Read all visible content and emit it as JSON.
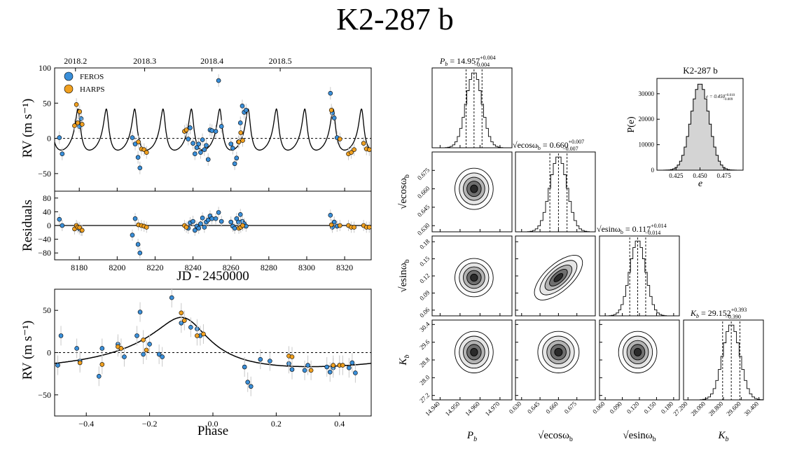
{
  "title": "K2-287 b",
  "colors": {
    "feros": "#3a8fd9",
    "harps": "#f0a020",
    "model": "#000000",
    "hist_fill": "#d4d4d4",
    "err": "#c8c8c8"
  },
  "chart_data": [
    {
      "id": "rv_time",
      "type": "scatter",
      "xlabel": "",
      "ylabel": "RV (m s⁻¹)",
      "xlim": [
        8167,
        8334
      ],
      "ylim": [
        -75,
        100
      ],
      "yticks": [
        -50,
        0,
        50,
        100
      ],
      "top_ticks": [
        8178,
        8214.5,
        8250,
        8286
      ],
      "top_tick_labels": [
        "2018.2",
        "2018.3",
        "2018.4",
        "2018.5"
      ],
      "legend": {
        "position": "top-left",
        "entries": [
          "FEROS",
          "HARPS"
        ]
      },
      "model": {
        "period": 14.957,
        "e": 0.45,
        "K": 29.152,
        "peak_time": 8179.3
      },
      "series": [
        {
          "name": "FEROS",
          "x": [
            8169.5,
            8171,
            8180,
            8181,
            8208,
            8209.5,
            8211,
            8212,
            8237.5,
            8238.5,
            8240,
            8241,
            8242,
            8243,
            8244,
            8245,
            8246,
            8247,
            8248,
            8249,
            8250,
            8252,
            8253.5,
            8255,
            8260,
            8261,
            8262,
            8263,
            8264,
            8265,
            8266,
            8267,
            8268,
            8312.5,
            8313.5,
            8314.5,
            8316
          ],
          "y": [
            1,
            -22,
            17,
            28,
            1,
            -8,
            -27,
            -42,
            -1,
            15,
            -7,
            -22,
            -13,
            -8,
            -20,
            -2,
            -16,
            -10,
            -30,
            12,
            11,
            10,
            82,
            17,
            -8,
            -14,
            -36,
            -28,
            -5,
            22,
            46,
            37,
            40,
            64,
            36,
            29,
            1
          ]
        },
        {
          "name": "HARPS",
          "x": [
            8177.5,
            8178.5,
            8179.2,
            8180.2,
            8181.5,
            8211.2,
            8212.8,
            8214.2,
            8215.5,
            8235.5,
            8236.5,
            8264.2,
            8265.2,
            8266.2,
            8313,
            8317.5,
            8322,
            8323.5,
            8325,
            8330,
            8331.5,
            8333
          ],
          "y": [
            18,
            48,
            22,
            38,
            20,
            -5,
            -15,
            -16,
            -20,
            10,
            12,
            -5,
            8,
            -3,
            40,
            -1,
            -22,
            -20,
            -16,
            -7,
            -15,
            -16
          ]
        }
      ]
    },
    {
      "id": "residuals",
      "type": "scatter",
      "xlabel": "JD - 2450000",
      "ylabel": "Residuals",
      "xlim": [
        8167,
        8334
      ],
      "ylim": [
        -100,
        100
      ],
      "xticks": [
        8180,
        8200,
        8220,
        8240,
        8260,
        8280,
        8300,
        8320
      ],
      "yticks": [
        -80,
        -40,
        0,
        40,
        80
      ],
      "series": [
        {
          "name": "FEROS",
          "x": [
            8169.5,
            8171,
            8180,
            8181,
            8208,
            8209.5,
            8211,
            8212,
            8237.5,
            8238.5,
            8240,
            8241,
            8242,
            8243,
            8244,
            8245,
            8246,
            8247,
            8248,
            8249,
            8250,
            8252,
            8253.5,
            8255,
            8260,
            8261,
            8262,
            8263,
            8264,
            8265,
            8266,
            8267,
            8268,
            8312.5,
            8313.5,
            8314.5,
            8316
          ],
          "y": [
            18,
            0,
            -10,
            -14,
            -28,
            20,
            -55,
            -80,
            -8,
            8,
            12,
            -14,
            -2,
            -8,
            5,
            22,
            -5,
            10,
            16,
            28,
            20,
            20,
            38,
            12,
            10,
            -2,
            -8,
            20,
            10,
            32,
            12,
            5,
            -2,
            30,
            -5,
            10,
            -2
          ]
        },
        {
          "name": "HARPS",
          "x": [
            8177.5,
            8178.5,
            8179.2,
            8180.2,
            8181.5,
            8211.2,
            8212.8,
            8214.2,
            8215.5,
            8235.5,
            8236.5,
            8264.2,
            8265.2,
            8266.2,
            8313,
            8317.5,
            8322,
            8323.5,
            8325,
            8330,
            8331.5,
            8333
          ],
          "y": [
            -10,
            0,
            -5,
            -6,
            -14,
            2,
            0,
            -2,
            -5,
            0,
            -5,
            -8,
            -5,
            0,
            2,
            0,
            0,
            -5,
            -5,
            0,
            -5,
            -5
          ]
        }
      ]
    },
    {
      "id": "rv_phase",
      "type": "scatter",
      "xlabel": "Phase",
      "ylabel": "RV (m s⁻¹)",
      "xlim": [
        -0.5,
        0.5
      ],
      "ylim": [
        -75,
        75
      ],
      "xticks": [
        -0.4,
        -0.2,
        0.0,
        0.2,
        0.4
      ],
      "yticks": [
        -50,
        0,
        50
      ],
      "series": [
        {
          "name": "FEROS",
          "x": [
            -0.49,
            -0.48,
            -0.43,
            -0.42,
            -0.36,
            -0.35,
            -0.3,
            -0.28,
            -0.24,
            -0.23,
            -0.22,
            -0.2,
            -0.17,
            -0.16,
            -0.13,
            -0.1,
            -0.07,
            -0.05,
            -0.04,
            0.1,
            0.11,
            0.12,
            0.15,
            0.18,
            0.24,
            0.25,
            0.29,
            0.3,
            0.36,
            0.37,
            0.38,
            0.43,
            0.44,
            0.45
          ],
          "y": [
            -15,
            20,
            5,
            -10,
            -28,
            5,
            10,
            -5,
            20,
            48,
            -2,
            10,
            -2,
            -5,
            65,
            35,
            30,
            28,
            20,
            -17,
            -35,
            -40,
            -8,
            -10,
            -13,
            -20,
            -21,
            -15,
            -17,
            -23,
            -18,
            -18,
            -12,
            -24
          ]
        },
        {
          "name": "HARPS",
          "x": [
            -0.42,
            -0.35,
            -0.3,
            -0.29,
            -0.22,
            -0.21,
            -0.1,
            -0.09,
            -0.05,
            -0.03,
            0.24,
            0.25,
            0.31,
            0.38,
            0.4,
            0.41
          ],
          "y": [
            -12,
            -14,
            7,
            5,
            15,
            3,
            47,
            38,
            20,
            22,
            -4,
            -5,
            -21,
            -15,
            -15,
            -15
          ]
        }
      ]
    },
    {
      "id": "corner",
      "type": "corner",
      "parameters": [
        "P_b",
        "sqrt(e)cos(w_b)",
        "sqrt(e)sin(w_b)",
        "K_b"
      ],
      "titles": [
        {
          "lhs": "P",
          "sub": "b",
          "value": "14.957",
          "plus": "+0.004",
          "minus": "−0.004"
        },
        {
          "lhs": "√ecosω",
          "sub": "b",
          "value": "0.660",
          "plus": "+0.007",
          "minus": "−0.007"
        },
        {
          "lhs": "√esinω",
          "sub": "b",
          "value": "0.117",
          "plus": "+0.014",
          "minus": "−0.014"
        },
        {
          "lhs": "K",
          "sub": "b",
          "value": "29.152",
          "plus": "+0.393",
          "minus": "−0.390"
        }
      ],
      "medians": [
        14.957,
        0.66,
        0.117,
        29.152
      ],
      "sigmas": [
        0.004,
        0.007,
        0.014,
        0.39
      ],
      "ranges": [
        [
          14.936,
          14.976
        ],
        [
          0.625,
          0.69
        ],
        [
          0.05,
          0.19
        ],
        [
          27.0,
          30.6
        ]
      ],
      "x_tick_labels": [
        [
          "14.940",
          "14.950",
          "14.960",
          "14.970"
        ],
        [
          "0.630",
          "0.645",
          "0.660",
          "0.675"
        ],
        [
          "0.060",
          "0.090",
          "0.120",
          "0.150",
          "0.180"
        ],
        [
          "27.200",
          "28.000",
          "28.800",
          "29.600",
          "30.400"
        ]
      ],
      "x_tick_values": [
        [
          14.94,
          14.95,
          14.96,
          14.97
        ],
        [
          0.63,
          0.645,
          0.66,
          0.675
        ],
        [
          0.06,
          0.09,
          0.12,
          0.15,
          0.18
        ],
        [
          27.2,
          28.0,
          28.8,
          29.6,
          30.4
        ]
      ],
      "y_tick_labels": [
        null,
        [
          "0.630",
          "0.645",
          "0.660",
          "0.675"
        ],
        [
          "0.06",
          "0.09",
          "0.12",
          "0.15",
          "0.18"
        ],
        [
          "27.2",
          "28.0",
          "28.8",
          "29.6",
          "30.4"
        ]
      ],
      "y_tick_values": [
        null,
        [
          0.63,
          0.645,
          0.66,
          0.675
        ],
        [
          0.06,
          0.09,
          0.12,
          0.15,
          0.18
        ],
        [
          27.2,
          28.0,
          28.8,
          29.6,
          30.4
        ]
      ],
      "x_labels": [
        "P_b",
        "√ecosω_b",
        "√esinω_b",
        "K_b"
      ],
      "y_labels": [
        "√ecosω_b",
        "√esinω_b",
        "K_b"
      ],
      "correlations": {
        "2_1": 0.6
      }
    },
    {
      "id": "ecc_hist",
      "type": "histogram",
      "title": "K2-287 b",
      "xlabel": "e",
      "ylabel": "P(e)",
      "xlim": [
        0.405,
        0.495
      ],
      "ylim": [
        0,
        36000
      ],
      "xticks": [
        0.425,
        0.45,
        0.475
      ],
      "xtick_labels": [
        "0.425",
        "0.450",
        "0.475"
      ],
      "yticks": [
        0,
        10000,
        20000,
        30000
      ],
      "ytick_labels": [
        "0",
        "10000",
        "20000",
        "30000"
      ],
      "mean": 0.45,
      "sigma": 0.0095,
      "peak": 34000,
      "annotation": {
        "lhs": "e = 0.450",
        "plus": "+0.010",
        "minus": "−0.009"
      }
    }
  ]
}
